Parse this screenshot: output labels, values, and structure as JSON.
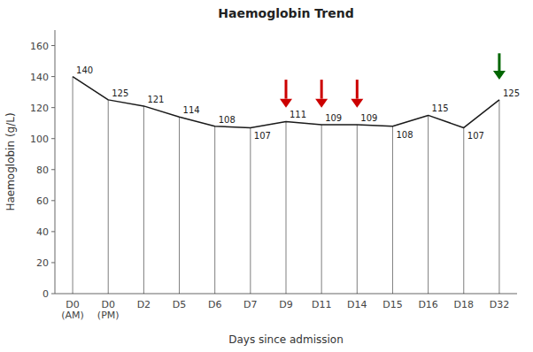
{
  "chart_data": {
    "type": "line",
    "title": "Haemoglobin Trend",
    "x_label": "Days since admission",
    "y_label": "Haemoglobin (g/L)",
    "categories": [
      "D0\n(AM)",
      "D0\n(PM)",
      "D2",
      "D5",
      "D6",
      "D7",
      "D9",
      "D11",
      "D14",
      "D15",
      "D16",
      "D18",
      "D32"
    ],
    "values": [
      140,
      125,
      121,
      114,
      108,
      107,
      111,
      109,
      109,
      108,
      115,
      107,
      125
    ],
    "color": "#1a1a1a",
    "ylim": [
      0,
      170
    ],
    "yticks": [
      0,
      20,
      40,
      60,
      80,
      100,
      120,
      140,
      160
    ],
    "grid": false,
    "data_labels": true,
    "annotations": [
      {
        "category": "D9",
        "from": 138,
        "to": 120,
        "color": "#cc0000"
      },
      {
        "category": "D11",
        "from": 138,
        "to": 120,
        "color": "#cc0000"
      },
      {
        "category": "D14",
        "from": 138,
        "to": 120,
        "color": "#cc0000"
      },
      {
        "category": "D32",
        "from": 155,
        "to": 138,
        "color": "#006600"
      }
    ]
  }
}
